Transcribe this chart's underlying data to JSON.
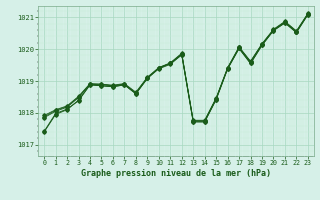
{
  "title": "Graphe pression niveau de la mer (hPa)",
  "background_color": "#d6f0e8",
  "grid_major_color": "#a8d8c0",
  "grid_minor_color": "#c8ecd8",
  "line_color": "#1a5c1a",
  "xlim": [
    -0.5,
    23.5
  ],
  "ylim": [
    1016.65,
    1021.35
  ],
  "yticks": [
    1017,
    1018,
    1019,
    1020,
    1021
  ],
  "xticks": [
    0,
    1,
    2,
    3,
    4,
    5,
    6,
    7,
    8,
    9,
    10,
    11,
    12,
    13,
    14,
    15,
    16,
    17,
    18,
    19,
    20,
    21,
    22,
    23
  ],
  "series": [
    [
      1017.4,
      1017.95,
      1018.1,
      1018.4,
      1018.88,
      1018.85,
      1018.82,
      1018.88,
      1018.6,
      1019.08,
      1019.38,
      1019.52,
      1019.82,
      1017.72,
      1017.72,
      1018.42,
      1019.38,
      1020.02,
      1019.55,
      1020.12,
      1020.58,
      1020.82,
      1020.52,
      1021.08
    ],
    [
      1017.85,
      1018.05,
      1018.18,
      1018.48,
      1018.9,
      1018.9,
      1018.85,
      1018.9,
      1018.62,
      1019.1,
      1019.4,
      1019.55,
      1019.85,
      1017.75,
      1017.75,
      1018.45,
      1019.4,
      1020.05,
      1019.6,
      1020.15,
      1020.6,
      1020.85,
      1020.55,
      1021.1
    ],
    [
      1017.88,
      1018.08,
      1018.2,
      1018.5,
      1018.9,
      1018.88,
      1018.85,
      1018.9,
      1018.62,
      1019.1,
      1019.4,
      1019.55,
      1019.85,
      1017.75,
      1017.75,
      1018.45,
      1019.4,
      1020.05,
      1019.6,
      1020.15,
      1020.6,
      1020.85,
      1020.55,
      1021.1
    ],
    [
      1017.92,
      1018.1,
      1018.22,
      1018.52,
      1018.92,
      1018.9,
      1018.87,
      1018.92,
      1018.65,
      1019.12,
      1019.42,
      1019.57,
      1019.87,
      1017.77,
      1017.77,
      1018.47,
      1019.42,
      1020.07,
      1019.62,
      1020.17,
      1020.62,
      1020.87,
      1020.57,
      1021.12
    ]
  ],
  "main_series": [
    1017.42,
    1017.98,
    1018.12,
    1018.38,
    1018.88,
    1018.85,
    1018.82,
    1018.88,
    1018.6,
    1019.08,
    1019.42,
    1019.55,
    1019.82,
    1017.72,
    1017.72,
    1018.42,
    1019.38,
    1020.02,
    1019.55,
    1020.12,
    1020.58,
    1020.82,
    1020.52,
    1021.08
  ],
  "figsize": [
    3.2,
    2.0
  ],
  "dpi": 100
}
